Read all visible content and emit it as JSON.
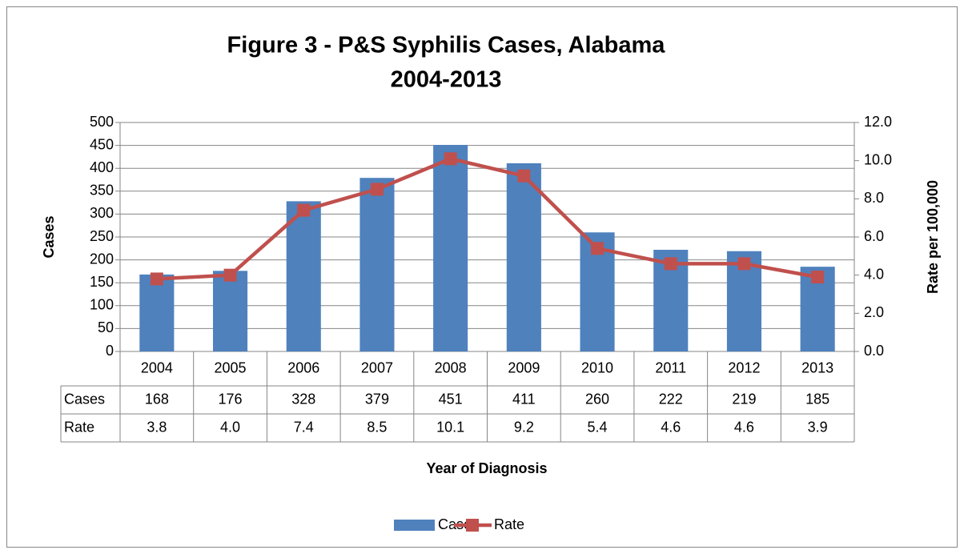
{
  "chart_data": {
    "type": "bar-line",
    "title": [
      "Figure 3 - P&S Syphilis Cases, Alabama",
      "2004-2013"
    ],
    "categories": [
      "2004",
      "2005",
      "2006",
      "2007",
      "2008",
      "2009",
      "2010",
      "2011",
      "2012",
      "2013"
    ],
    "series": [
      {
        "name": "Cases",
        "type": "bar",
        "color": "#4f81bd",
        "values": [
          168,
          176,
          328,
          379,
          451,
          411,
          260,
          222,
          219,
          185
        ]
      },
      {
        "name": "Rate",
        "type": "line",
        "axis": "y2",
        "color": "#c0504d",
        "values": [
          3.8,
          4.0,
          7.4,
          8.5,
          10.1,
          9.2,
          5.4,
          4.6,
          4.6,
          3.9
        ],
        "value_labels": [
          "3.8",
          "4.0",
          "7.4",
          "8.5",
          "10.1",
          "9.2",
          "5.4",
          "4.6",
          "4.6",
          "3.9"
        ]
      }
    ],
    "xlabel": "Year of Diagnosis",
    "ylabel": "Cases",
    "y2label": "Rate per 100,000",
    "ylim": [
      0,
      500
    ],
    "yticks": [
      0,
      50,
      100,
      150,
      200,
      250,
      300,
      350,
      400,
      450,
      500
    ],
    "y2lim": [
      0,
      12
    ],
    "y2ticks": [
      {
        "value": 0,
        "label": "0.0"
      },
      {
        "value": 2,
        "label": "2.0"
      },
      {
        "value": 4,
        "label": "4.0"
      },
      {
        "value": 6,
        "label": "6.0"
      },
      {
        "value": 8,
        "label": "8.0"
      },
      {
        "value": 10,
        "label": "10.0"
      },
      {
        "value": 12,
        "label": "12.0"
      }
    ],
    "grid": true,
    "legend": "bottom",
    "data_table": true
  }
}
